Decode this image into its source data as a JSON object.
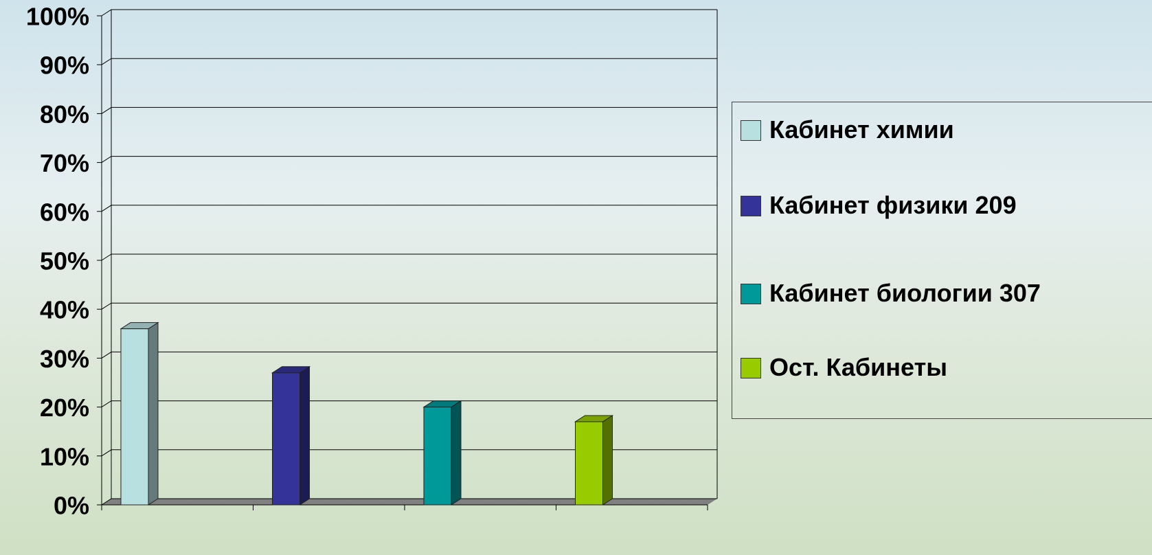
{
  "chart_data": {
    "type": "bar3d",
    "categories": [
      null,
      null,
      null,
      null
    ],
    "series": [
      {
        "name": "Кабинет химии",
        "color": "#b8e0e0",
        "values": [
          36,
          null,
          null,
          null
        ]
      },
      {
        "name": "Кабинет физики 209",
        "color": "#333399",
        "values": [
          null,
          27,
          null,
          null
        ]
      },
      {
        "name": "Кабинет биологии 307",
        "color": "#009999",
        "values": [
          null,
          null,
          20,
          null
        ]
      },
      {
        "name": "Ост. Кабинеты",
        "color": "#99cc00",
        "values": [
          null,
          null,
          null,
          17
        ]
      }
    ],
    "ylim": [
      0,
      100
    ],
    "yticks": [
      {
        "value": 0,
        "label": "0%"
      },
      {
        "value": 10,
        "label": "10%"
      },
      {
        "value": 20,
        "label": "20%"
      },
      {
        "value": 30,
        "label": "30%"
      },
      {
        "value": 40,
        "label": "40%"
      },
      {
        "value": 50,
        "label": "50%"
      },
      {
        "value": 60,
        "label": "60%"
      },
      {
        "value": 70,
        "label": "70%"
      },
      {
        "value": 80,
        "label": "80%"
      },
      {
        "value": 90,
        "label": "90%"
      },
      {
        "value": 100,
        "label": "100%"
      }
    ],
    "grid": true,
    "legend": "right"
  }
}
